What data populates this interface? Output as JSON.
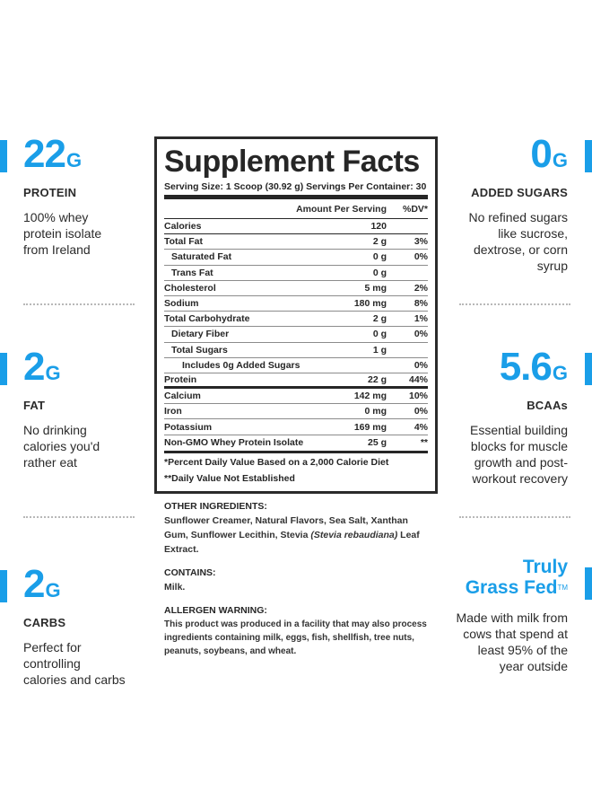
{
  "left_column": [
    {
      "value": "22",
      "unit": "G",
      "title": "PROTEIN",
      "desc": "100% whey protein isolate from Ireland"
    },
    {
      "value": "2",
      "unit": "G",
      "title": "FAT",
      "desc": "No drinking calories you'd rather eat"
    },
    {
      "value": "2",
      "unit": "G",
      "title": "CARBS",
      "desc": "Perfect for controlling calories and carbs"
    }
  ],
  "right_column": [
    {
      "value": "0",
      "unit": "G",
      "title": "ADDED SUGARS",
      "desc": "No refined sugars like sucrose, dextrose, or corn syrup"
    },
    {
      "value": "5.6",
      "unit": "G",
      "title": "BCAAs",
      "desc": "Essential building blocks for muscle growth and post-workout recovery"
    },
    {
      "brand_line1": "Truly",
      "brand_line2": "Grass Fed",
      "trademark": "TM",
      "desc": "Made with milk from cows that spend at least 95% of the year outside"
    }
  ],
  "label": {
    "title": "Supplement Facts",
    "serving": "Serving Size: 1 Scoop (30.92 g)  Servings Per Container: 30",
    "header": {
      "amount": "Amount Per Serving",
      "dv": "%DV*"
    },
    "rows": [
      {
        "name": "Calories",
        "amount": "120",
        "dv": ""
      },
      {
        "name": "Total Fat",
        "amount": "2 g",
        "dv": "3%"
      },
      {
        "name": "Saturated Fat",
        "amount": "0 g",
        "dv": "0%"
      },
      {
        "name": "Trans Fat",
        "amount": "0 g",
        "dv": ""
      },
      {
        "name": "Cholesterol",
        "amount": "5 mg",
        "dv": "2%"
      },
      {
        "name": "Sodium",
        "amount": "180 mg",
        "dv": "8%"
      },
      {
        "name": "Total Carbohydrate",
        "amount": "2 g",
        "dv": "1%"
      },
      {
        "name": "Dietary Fiber",
        "amount": "0 g",
        "dv": "0%"
      },
      {
        "name": "Total Sugars",
        "amount": "1 g",
        "dv": ""
      },
      {
        "name": "Includes 0g Added Sugars",
        "amount": "",
        "dv": "0%"
      },
      {
        "name": "Protein",
        "amount": "22 g",
        "dv": "44%"
      },
      {
        "name": "Calcium",
        "amount": "142 mg",
        "dv": "10%"
      },
      {
        "name": "Iron",
        "amount": "0 mg",
        "dv": "0%"
      },
      {
        "name": "Potassium",
        "amount": "169 mg",
        "dv": "4%"
      },
      {
        "name": "Non-GMO Whey Protein Isolate",
        "amount": "25 g",
        "dv": "**"
      }
    ],
    "footnote1": "*Percent Daily Value Based on a 2,000 Calorie Diet",
    "footnote2": "**Daily Value Not Established"
  },
  "ingredients": {
    "other_heading": "OTHER INGREDIENTS:",
    "other_text_1": "Sunflower Creamer, Natural Flavors, Sea Salt, Xanthan Gum, Sunflower Lecithin, Stevia ",
    "other_text_italic": "(Stevia rebaudiana)",
    "other_text_2": " Leaf Extract.",
    "contains_heading": "CONTAINS:",
    "contains_text": "Milk.",
    "allergen_heading": "ALLERGEN WARNING:",
    "allergen_text": "This product was produced in a facility that may also process ingredients containing milk, eggs, fish, shellfish, tree nuts, peanuts, soybeans, and wheat."
  },
  "colors": {
    "accent": "#1a9ee8",
    "text": "#2b2b2b",
    "divider_dots": "#b8b8b8"
  }
}
